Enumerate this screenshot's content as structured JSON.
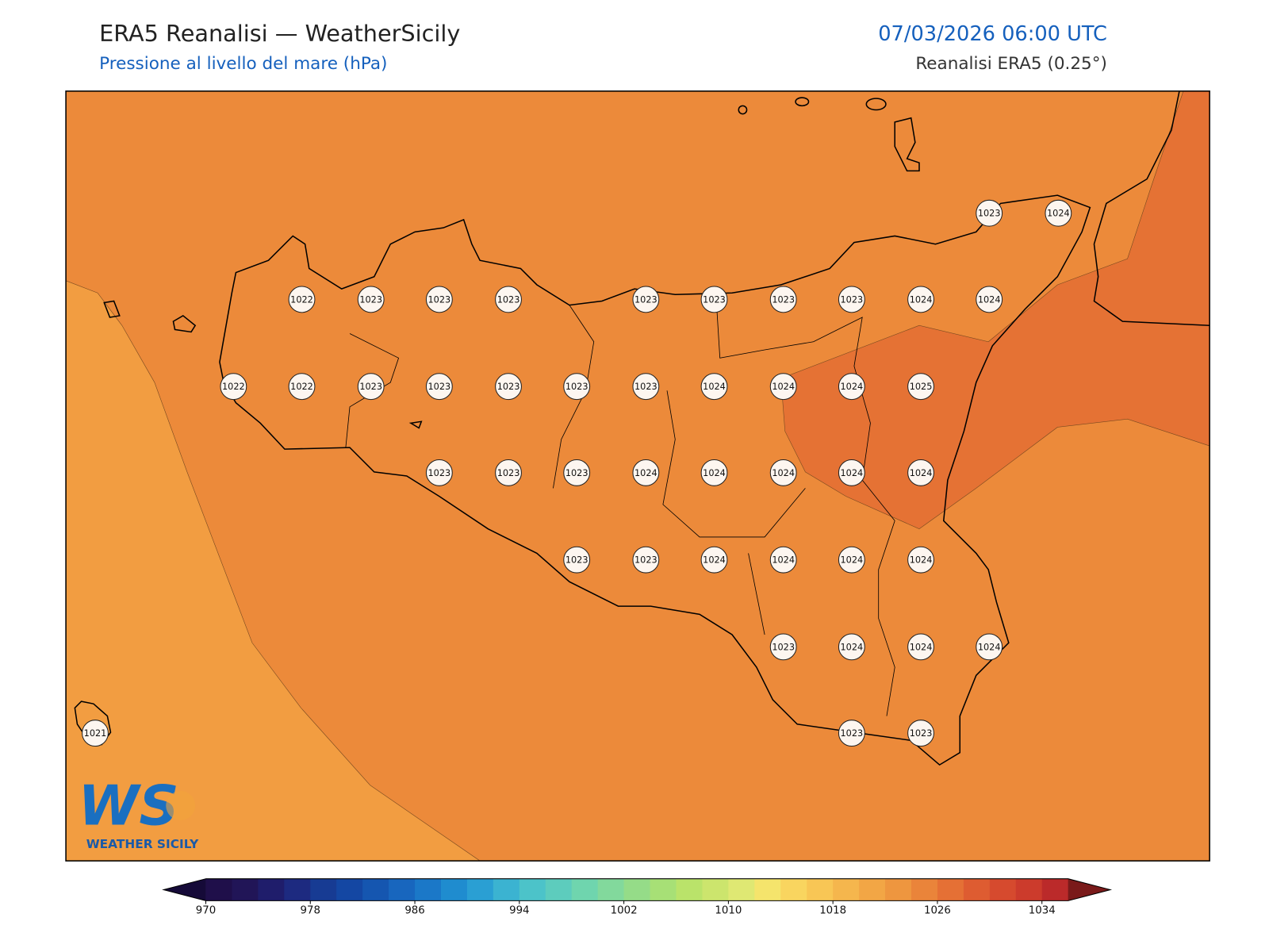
{
  "header": {
    "title": "ERA5 Reanalisi — WeatherSicily",
    "subtitle": "Pressione al livello del mare (hPa)",
    "datetime": "07/03/2026 06:00 UTC",
    "source": "Reanalisi ERA5 (0.25°)"
  },
  "stations": [
    1023,
    1024,
    1022,
    1023,
    1023,
    1023,
    1023,
    1023,
    1023,
    1023,
    1024,
    1024,
    1022,
    1022,
    1023,
    1023,
    1023,
    1023,
    1023,
    1024,
    1024,
    1024,
    1025,
    1023,
    1023,
    1023,
    1024,
    1024,
    1024,
    1024,
    1024,
    1023,
    1023,
    1024,
    1024,
    1024,
    1024,
    1023,
    1024,
    1024,
    1024,
    1021,
    1023,
    1023
  ],
  "colorbar": {
    "lim": [
      970,
      1036
    ],
    "ticks": [
      970,
      978,
      986,
      994,
      1002,
      1010,
      1018,
      1026,
      1034
    ],
    "colors": [
      "#1f0f4a",
      "#211557",
      "#1f1d6b",
      "#1d2a80",
      "#173b93",
      "#1447a3",
      "#1556b0",
      "#1866be",
      "#1b78c8",
      "#1f8ccf",
      "#2a9fd3",
      "#3bb3d1",
      "#4cc3c9",
      "#5dccbd",
      "#6fd5ae",
      "#82d99c",
      "#95dc88",
      "#a7e076",
      "#bae36a",
      "#cce56d",
      "#dfe873",
      "#f5e46c",
      "#f9d55f",
      "#f8c655",
      "#f5b64d",
      "#f2a645",
      "#ee963f",
      "#ea843a",
      "#e57035",
      "#de5c31",
      "#d64a2e",
      "#cc3b2c",
      "#bb2a2a"
    ],
    "under_color": "#150a38",
    "over_color": "#7a1a1a"
  },
  "logo": {
    "mark": "WS",
    "text": "WEATHER SICILY"
  }
}
